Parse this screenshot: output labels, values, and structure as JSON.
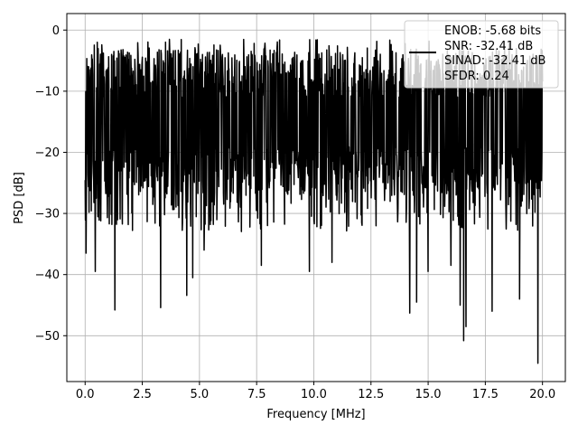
{
  "chart_data": {
    "type": "line",
    "title": "",
    "xlabel": "Frequency [MHz]",
    "ylabel": "PSD [dB]",
    "xlim": [
      -0.8,
      21.0
    ],
    "ylim": [
      -57.5,
      2.7
    ],
    "x_ticks": [
      0.0,
      2.5,
      5.0,
      7.5,
      10.0,
      12.5,
      15.0,
      17.5,
      20.0
    ],
    "x_tick_labels": [
      "0.0",
      "2.5",
      "5.0",
      "7.5",
      "10.0",
      "12.5",
      "15.0",
      "17.5",
      "20.0"
    ],
    "y_ticks": [
      0,
      -10,
      -20,
      -30,
      -40,
      -50
    ],
    "y_tick_labels": [
      "0",
      "−10",
      "−20",
      "−30",
      "−40",
      "−50"
    ],
    "grid": true,
    "legend_placement": "top-right",
    "line_color": "#000000",
    "series": [
      {
        "name": "ENOB: -5.68 bits\nSNR: -32.41 dB\nSINAD: -32.41 dB\nSFDR: 0.24",
        "legend_lines": [
          "ENOB: -5.68 bits",
          "SNR: -32.41 dB",
          "SINAD: -32.41 dB",
          "SFDR: 0.24"
        ],
        "x_range": [
          0.0,
          20.0
        ],
        "typical_range": [
          -27.0,
          -3.0
        ],
        "peak_max": -1.5,
        "dips": [
          {
            "x": 0.05,
            "y": -36.5
          },
          {
            "x": 0.45,
            "y": -39.5
          },
          {
            "x": 1.3,
            "y": -45.8
          },
          {
            "x": 3.3,
            "y": -45.4
          },
          {
            "x": 4.45,
            "y": -43.4
          },
          {
            "x": 4.7,
            "y": -40.5
          },
          {
            "x": 5.2,
            "y": -36.0
          },
          {
            "x": 7.7,
            "y": -38.5
          },
          {
            "x": 9.8,
            "y": -39.5
          },
          {
            "x": 10.8,
            "y": -38.0
          },
          {
            "x": 14.2,
            "y": -46.3
          },
          {
            "x": 14.5,
            "y": -44.5
          },
          {
            "x": 15.0,
            "y": -39.5
          },
          {
            "x": 16.0,
            "y": -38.5
          },
          {
            "x": 16.4,
            "y": -45.0
          },
          {
            "x": 16.55,
            "y": -50.8
          },
          {
            "x": 16.65,
            "y": -48.5
          },
          {
            "x": 17.8,
            "y": -46.0
          },
          {
            "x": 19.0,
            "y": -44.0
          },
          {
            "x": 19.8,
            "y": -54.5
          }
        ]
      }
    ]
  }
}
